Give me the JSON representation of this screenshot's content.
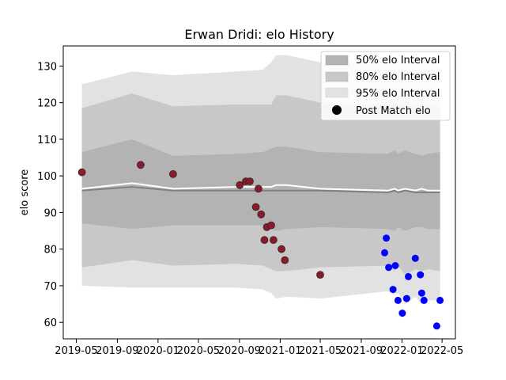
{
  "chart_data": {
    "type": "line",
    "title": "Erwan Dridi: elo History",
    "xlabel": "",
    "ylabel": "elo score",
    "xlim": [
      "2019-03-23",
      "2022-06-10"
    ],
    "ylim": [
      55.5,
      135.5
    ],
    "x_ticks": [
      "2019-05",
      "2019-09",
      "2020-01",
      "2020-05",
      "2020-09",
      "2021-01",
      "2021-05",
      "2021-09",
      "2022-01",
      "2022-05"
    ],
    "y_ticks": [
      60,
      70,
      80,
      90,
      100,
      110,
      120,
      130
    ],
    "legend": {
      "position": "top-right",
      "entries": [
        "50% elo Interval",
        "80% elo Interval",
        "95% elo Interval",
        "Post Match elo"
      ]
    },
    "colors": {
      "band_50": "#b3b3b3",
      "band_80": "#c8c8c8",
      "band_95": "#e2e2e2",
      "mean_line": "#ffffff",
      "median_line": "#808080",
      "points_early": "#8b1a2b",
      "points_recent": "#0000ff"
    },
    "bands": {
      "x": [
        "2019-05-18",
        "2019-10-15",
        "2020-02-15",
        "2020-08-20",
        "2020-11-10",
        "2020-12-05",
        "2020-12-20",
        "2021-01-20",
        "2021-05-01",
        "2021-11-20",
        "2021-12-10",
        "2021-12-20",
        "2022-01-10",
        "2022-02-10",
        "2022-03-01",
        "2022-03-20",
        "2022-04-25"
      ],
      "upper95": [
        125,
        128.5,
        127.5,
        128.5,
        129,
        131,
        133,
        133,
        131,
        131,
        132,
        131,
        132,
        131,
        130.5,
        131,
        130
      ],
      "upper80": [
        118.5,
        122.5,
        119,
        119.5,
        119.5,
        119.5,
        122,
        122,
        120,
        119.5,
        120.5,
        119.5,
        120.5,
        119.5,
        119,
        119.5,
        119
      ],
      "upper50": [
        106.5,
        110,
        105.5,
        106,
        106.5,
        107.5,
        108,
        108,
        106.5,
        106,
        107,
        106,
        107,
        106,
        105.5,
        106,
        106.5
      ],
      "lower50": [
        87,
        85.5,
        86.5,
        86.5,
        86.5,
        85.5,
        85,
        85.5,
        86,
        85.5,
        85,
        86,
        85,
        86,
        86,
        85.5,
        85.5
      ],
      "lower80": [
        75,
        77,
        75.5,
        76,
        75.5,
        74.5,
        74,
        74,
        75,
        75.5,
        74,
        75.5,
        73,
        74.5,
        74,
        74.5,
        74
      ],
      "lower95": [
        70,
        69.5,
        69.5,
        69.5,
        69,
        68,
        66.5,
        67,
        66.5,
        68.5,
        67.5,
        68,
        65,
        67,
        65,
        66,
        66
      ],
      "mean": [
        96.5,
        98,
        96.5,
        97,
        97,
        97,
        97.5,
        97.5,
        96.5,
        96,
        96.5,
        96,
        96.5,
        96,
        96.5,
        96,
        96
      ],
      "median": [
        96,
        97,
        96,
        96,
        96,
        96,
        96,
        96,
        96,
        95.5,
        96,
        95.5,
        96,
        95.5,
        95.5,
        95.5,
        95.5
      ]
    },
    "series": [
      {
        "x": [
          "2019-05-18",
          "2019-11-10",
          "2020-02-15",
          "2020-09-02",
          "2020-09-20",
          "2020-10-02",
          "2020-10-20",
          "2020-10-28",
          "2020-11-05",
          "2020-11-15",
          "2020-11-22",
          "2020-12-05",
          "2020-12-12",
          "2021-01-05",
          "2021-01-15",
          "2021-05-01"
        ],
        "y": [
          101,
          103,
          100.5,
          97.5,
          98.5,
          98.5,
          91.5,
          96.5,
          89.5,
          82.5,
          86,
          86.5,
          82.5,
          80,
          77,
          73
        ]
      },
      {
        "x": [
          "2021-11-10",
          "2021-11-15",
          "2021-11-22",
          "2021-12-05",
          "2021-12-12",
          "2021-12-20",
          "2022-01-02",
          "2022-01-15",
          "2022-01-20",
          "2022-02-10",
          "2022-02-25",
          "2022-03-01",
          "2022-03-08",
          "2022-04-15",
          "2022-04-25"
        ],
        "y": [
          79,
          83,
          75,
          69,
          75.5,
          66,
          62.5,
          66.5,
          72.5,
          77.5,
          73,
          68,
          66,
          59,
          66
        ]
      }
    ]
  }
}
